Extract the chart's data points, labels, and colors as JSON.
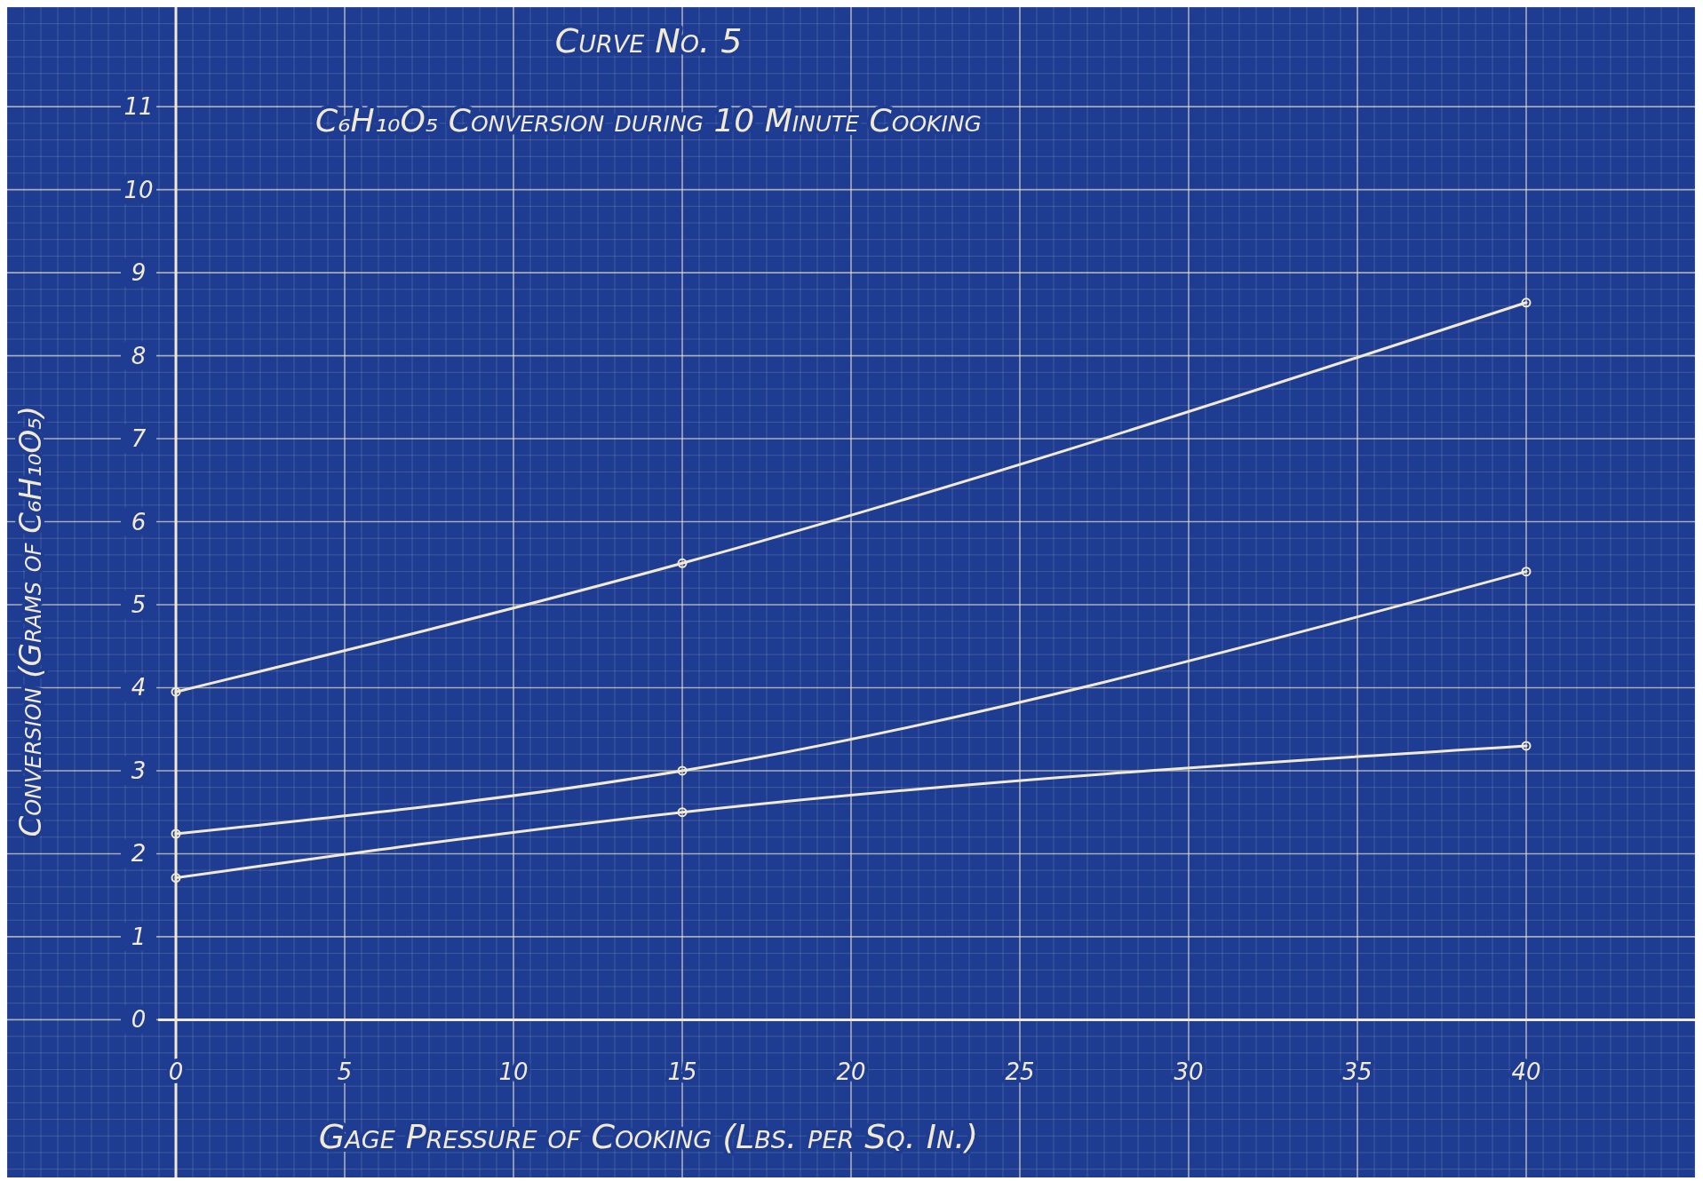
{
  "chart_data": {
    "type": "line",
    "title": "Curve No. 5",
    "subtitle": "C₆H₁₀O₅ Conversion during 10 Minute Cooking",
    "xlabel": "Gage Pressure of Cooking (Lbs. per Sq. In.)",
    "ylabel": "Conversion (Grams of C₆H₁₀O₅)",
    "x": [
      0,
      15,
      40
    ],
    "series": [
      {
        "color": "#f2ead0",
        "values": [
          3.95,
          5.5,
          8.64
        ]
      },
      {
        "color": "#f2ead0",
        "values": [
          2.24,
          3.0,
          5.4
        ]
      },
      {
        "color": "#f2ead0",
        "values": [
          1.71,
          2.5,
          3.3
        ]
      }
    ],
    "xlim": [
      -5,
      45
    ],
    "ylim": [
      -1.9,
      12.2
    ],
    "xticks": [
      0,
      5,
      10,
      15,
      20,
      25,
      30,
      35,
      40
    ],
    "yticks": [
      0,
      1,
      2,
      3,
      4,
      5,
      6,
      7,
      8,
      9,
      10,
      11
    ],
    "grid": true,
    "marker": "circle",
    "line_style": "solid"
  }
}
